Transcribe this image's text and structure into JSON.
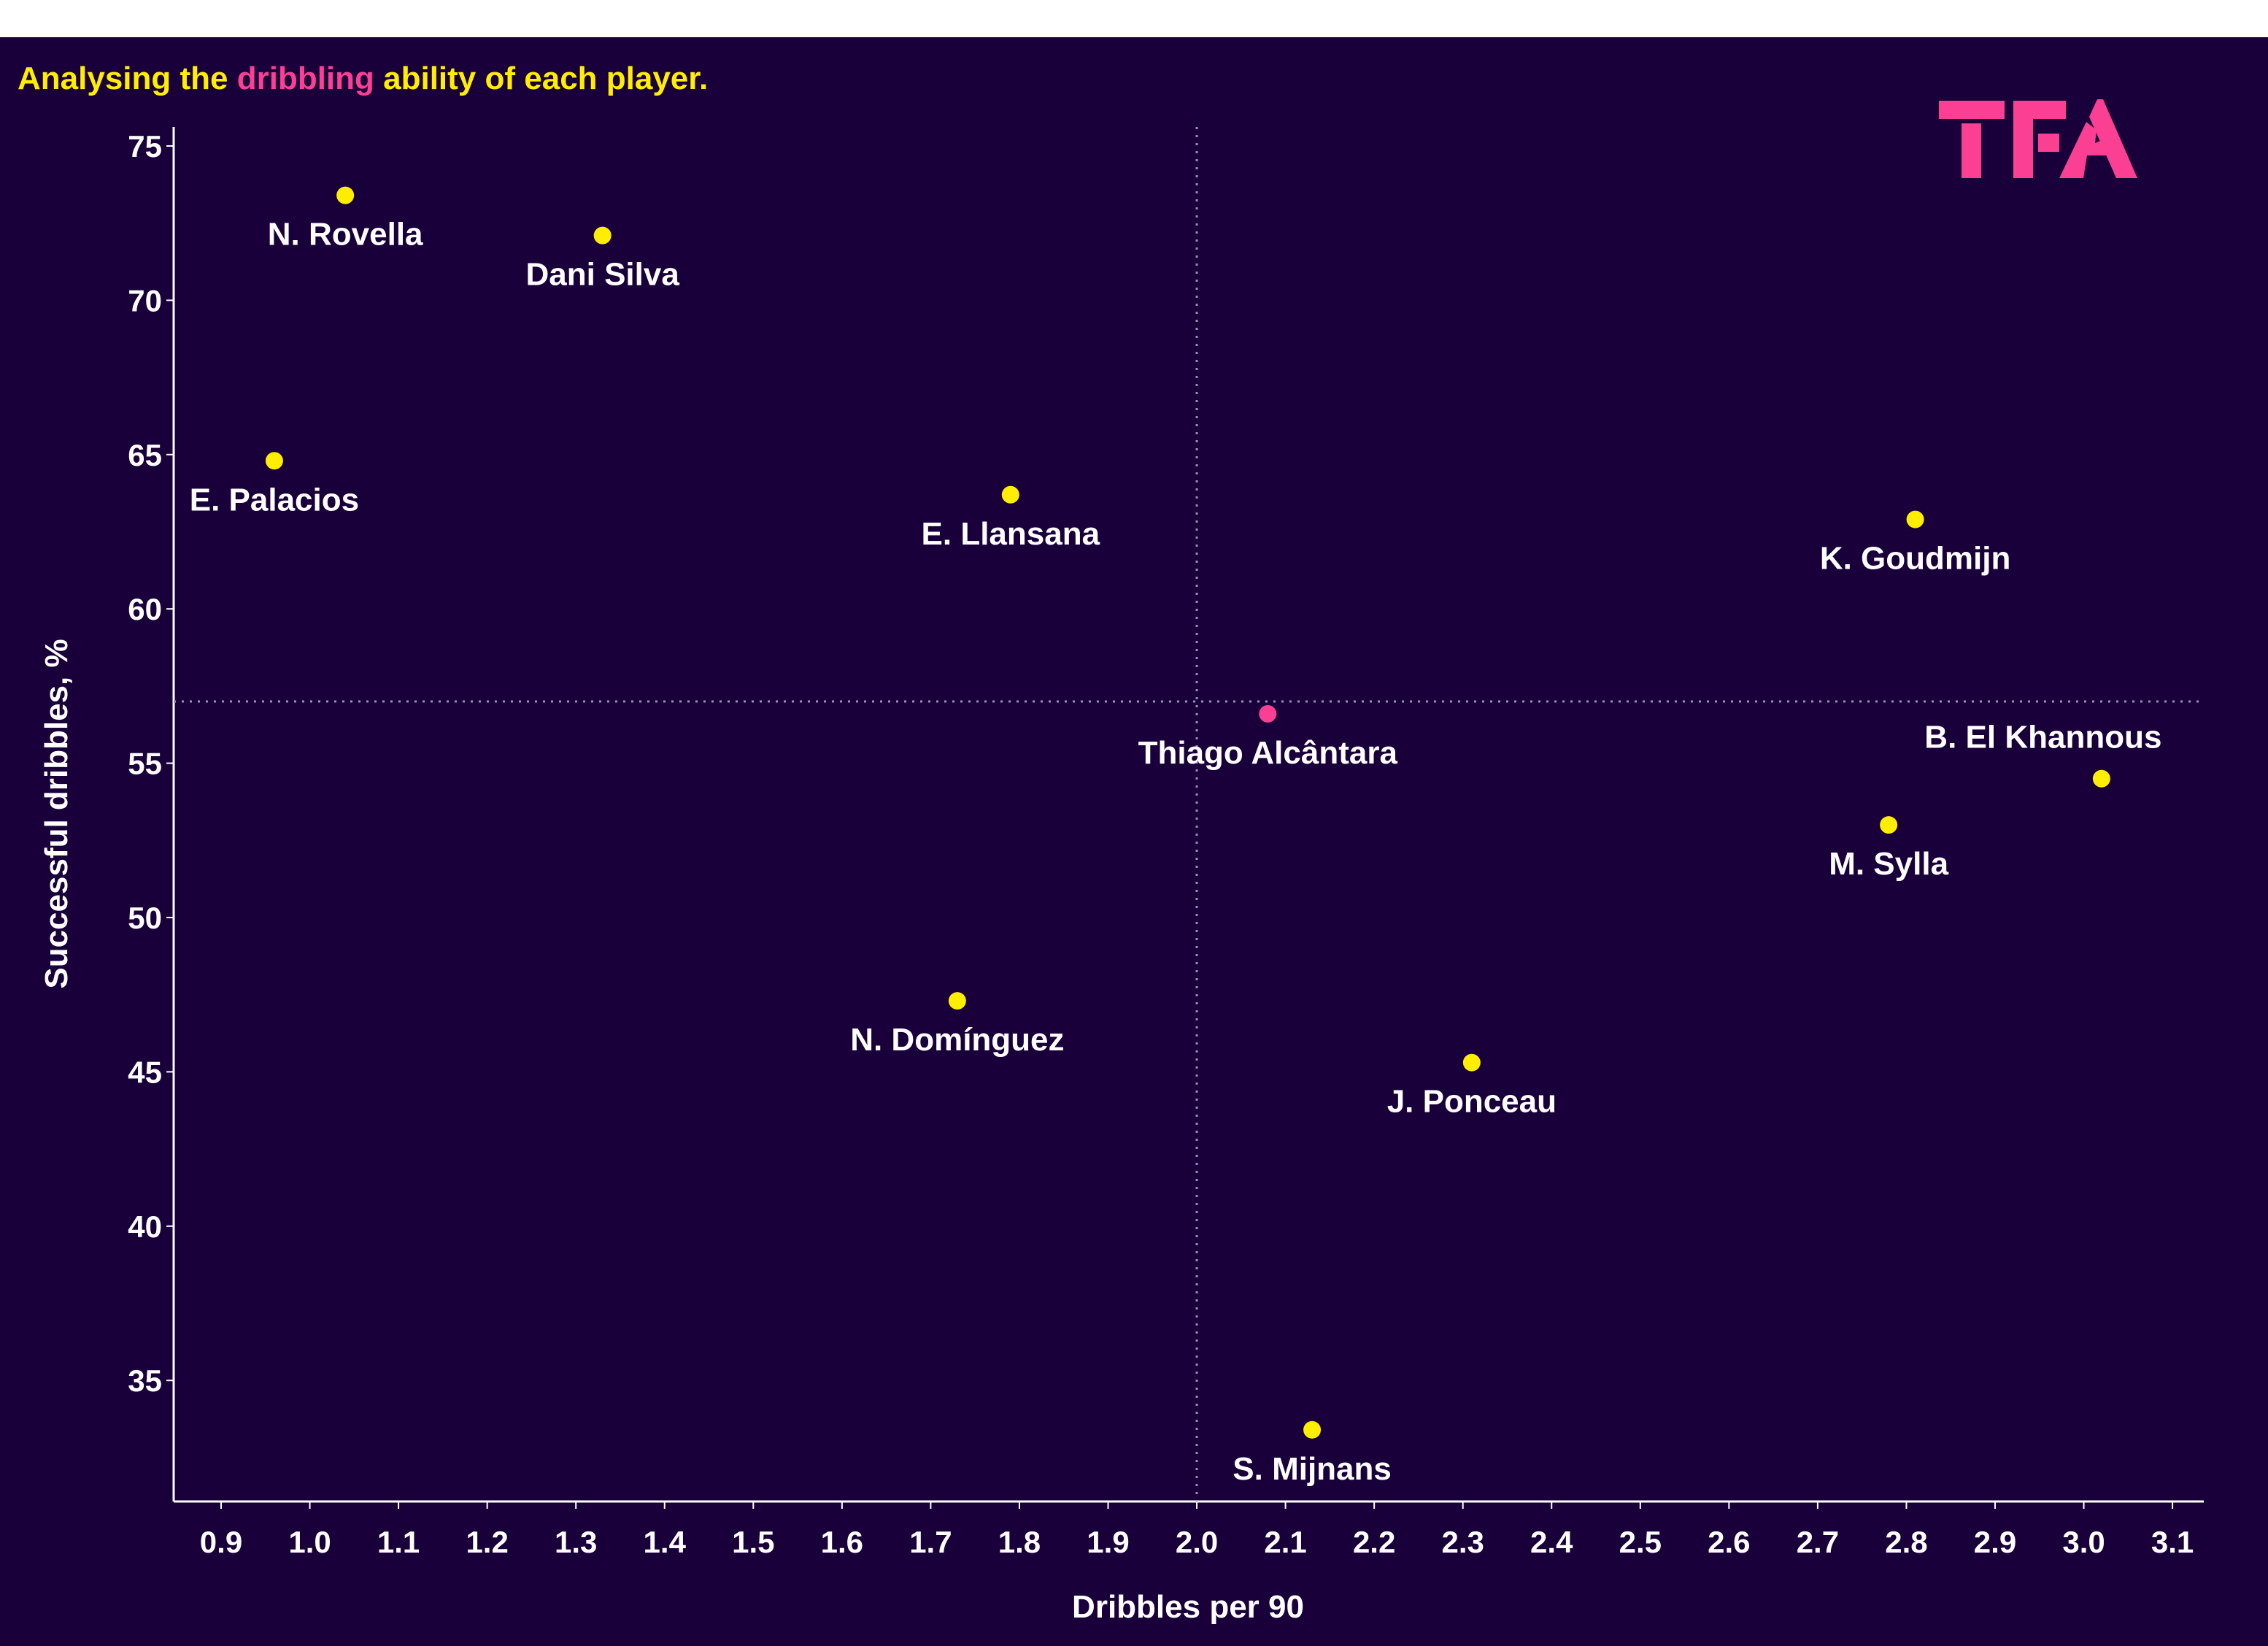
{
  "title": {
    "part1": "Analysing the ",
    "highlight": "dribbling",
    "part2": " ability of each player."
  },
  "logo": {
    "text": "TFA",
    "color": "#fb3f92"
  },
  "colors": {
    "background": "#19003a",
    "point": "#ffee00",
    "highlight_point": "#fb3f92",
    "title": "#ffee00",
    "text": "#ffffff"
  },
  "chart_data": {
    "type": "scatter",
    "xlabel": "Dribbles per 90",
    "ylabel": "Successful dribbles, %",
    "xlim": [
      0.85,
      3.14
    ],
    "ylim": [
      31,
      75.8
    ],
    "xticks": [
      "0.9",
      "1.0",
      "1.1",
      "1.2",
      "1.3",
      "1.4",
      "1.5",
      "1.6",
      "1.7",
      "1.8",
      "1.9",
      "2.0",
      "2.1",
      "2.2",
      "2.3",
      "2.4",
      "2.5",
      "2.6",
      "2.7",
      "2.8",
      "2.9",
      "3.0",
      "3.1"
    ],
    "yticks": [
      "35",
      "40",
      "45",
      "50",
      "55",
      "60",
      "65",
      "70",
      "75"
    ],
    "grid": false,
    "reference_lines": {
      "x": 2.0,
      "y": 57.0,
      "style": "dotted"
    },
    "points": [
      {
        "name": "N. Rovella",
        "x": 1.04,
        "y": 73.4,
        "highlight": false
      },
      {
        "name": "Dani Silva",
        "x": 1.33,
        "y": 72.1,
        "highlight": false
      },
      {
        "name": "E. Palacios",
        "x": 0.96,
        "y": 64.8,
        "highlight": false
      },
      {
        "name": "E. Llansana",
        "x": 1.79,
        "y": 63.7,
        "highlight": false
      },
      {
        "name": "K. Goudmijn",
        "x": 2.81,
        "y": 62.9,
        "highlight": false
      },
      {
        "name": "Thiago Alcântara",
        "x": 2.08,
        "y": 56.6,
        "highlight": true
      },
      {
        "name": "B. El Khannous",
        "x": 3.02,
        "y": 54.5,
        "highlight": false,
        "label_position": "above-left"
      },
      {
        "name": "M. Sylla",
        "x": 2.78,
        "y": 53.0,
        "highlight": false
      },
      {
        "name": "N. Domínguez",
        "x": 1.73,
        "y": 47.3,
        "highlight": false
      },
      {
        "name": "J. Ponceau",
        "x": 2.31,
        "y": 45.3,
        "highlight": false
      },
      {
        "name": "S. Mijnans",
        "x": 2.13,
        "y": 33.4,
        "highlight": false
      }
    ]
  }
}
